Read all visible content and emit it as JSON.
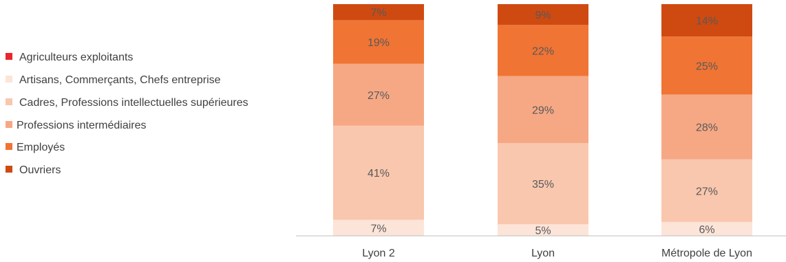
{
  "chart_data": {
    "type": "bar",
    "stacked": true,
    "percent_stacked": true,
    "categories": [
      "Lyon 2",
      "Lyon",
      "Métropole de Lyon"
    ],
    "series": [
      {
        "name": "Agriculteurs exploitants",
        "color": "#e8262c",
        "values": [
          0,
          0,
          0
        ],
        "labels": [
          "",
          "",
          ""
        ]
      },
      {
        "name": "Artisans, Commerçants, Chefs entreprise",
        "color": "#fde4d8",
        "values": [
          7,
          5,
          6
        ],
        "labels": [
          "7%",
          "5%",
          "6%"
        ]
      },
      {
        "name": "Cadres, Professions intellectuelles supérieures",
        "color": "#f9c7ae",
        "values": [
          41,
          35,
          27
        ],
        "labels": [
          "41%",
          "35%",
          "27%"
        ]
      },
      {
        "name": "Professions intermédiaires",
        "color": "#f6a885",
        "values": [
          27,
          29,
          28
        ],
        "labels": [
          "27%",
          "29%",
          "28%"
        ]
      },
      {
        "name": "Employés",
        "color": "#f07434",
        "values": [
          19,
          22,
          25
        ],
        "labels": [
          "19%",
          "22%",
          "25%"
        ]
      },
      {
        "name": "Ouvriers",
        "color": "#cf4a10",
        "values": [
          7,
          9,
          14
        ],
        "labels": [
          "7%",
          "9%",
          "14%"
        ]
      }
    ],
    "ylim": [
      0,
      100
    ],
    "legend_position": "left",
    "grid": false
  }
}
